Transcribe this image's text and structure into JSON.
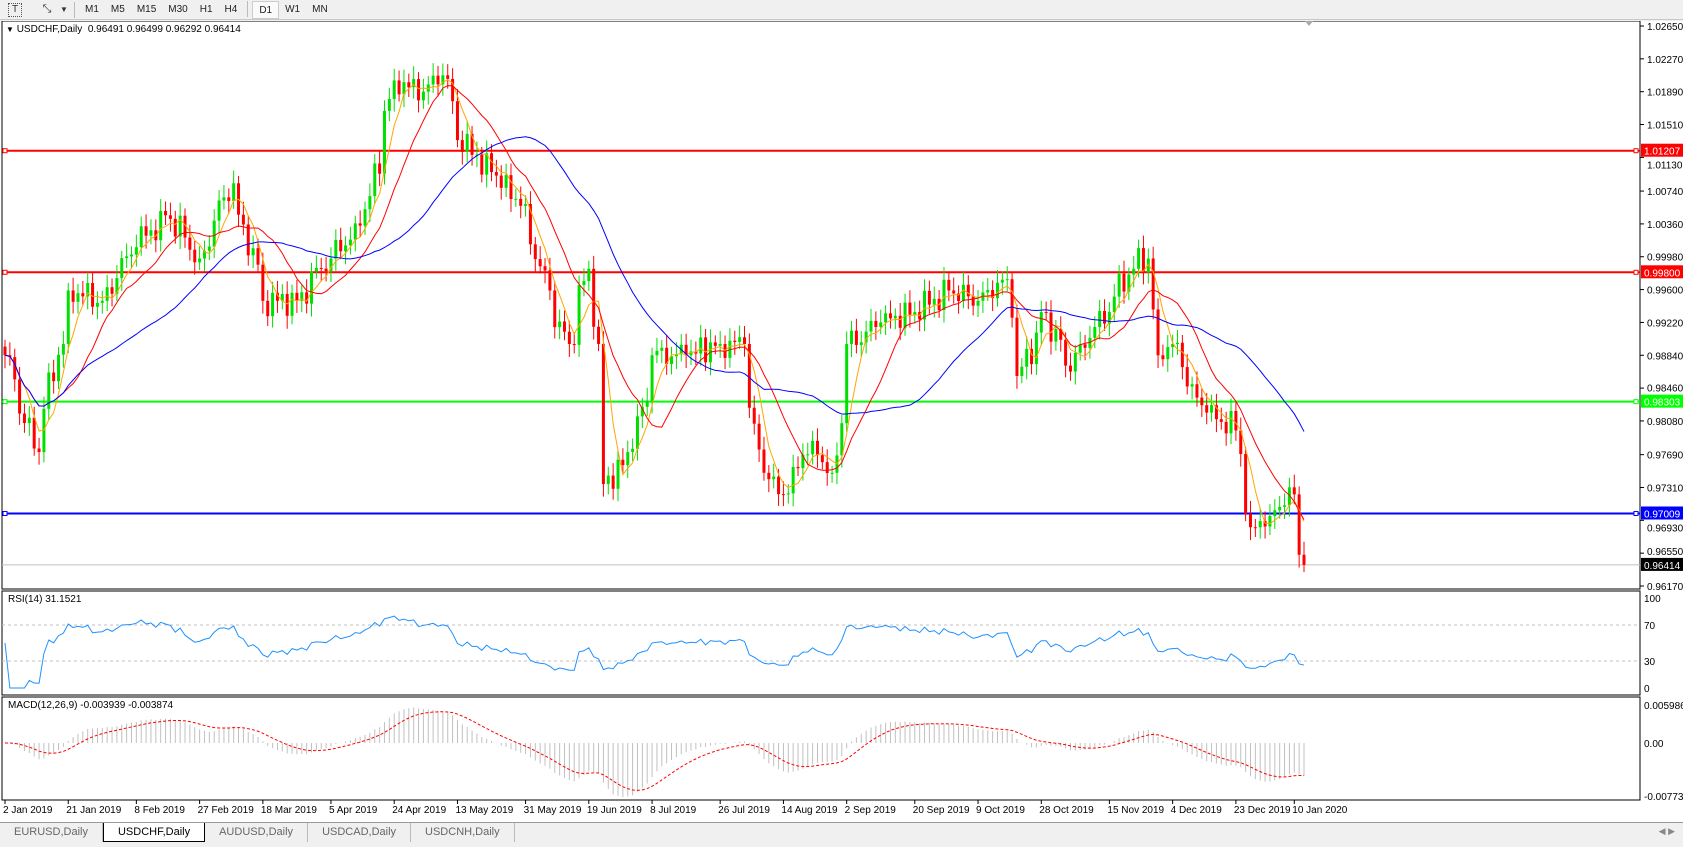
{
  "toolbar": {
    "timeframes": [
      "M1",
      "M5",
      "M15",
      "M30",
      "H1",
      "H4",
      "D1",
      "W1",
      "MN"
    ],
    "active": "D1",
    "icons": [
      "text-tool-icon",
      "line-tools-icon",
      "dropdown-arrow-icon"
    ]
  },
  "header": {
    "symbol": "USDCHF,Daily",
    "open": "0.96491",
    "high": "0.96499",
    "low": "0.96292",
    "close": "0.96414"
  },
  "tabs": [
    "EURUSD,Daily",
    "USDCHF,Daily",
    "AUDUSD,Daily",
    "USDCAD,Daily",
    "USDCNH,Daily"
  ],
  "active_tab": "USDCHF,Daily",
  "colors": {
    "bull": "#00e000",
    "bear": "#ff0000",
    "ma_fast": "#ffa500",
    "ma_mid": "#ff0000",
    "ma_slow": "#0000ff",
    "rsi": "#1e90ff",
    "macd_signal": "#ff0000",
    "macd_hist": "#c0c0c0"
  },
  "chart_data": [
    {
      "type": "candlestick",
      "title": "USDCHF,Daily",
      "ylim": [
        0.9617,
        1.0265
      ],
      "y_ticks": [
        "1.02650",
        "1.02270",
        "1.01890",
        "1.01510",
        "1.01130",
        "1.00740",
        "1.00360",
        "0.99980",
        "0.99600",
        "0.99220",
        "0.98840",
        "0.98460",
        "0.98080",
        "0.97690",
        "0.97310",
        "0.96930",
        "0.96550",
        "0.96170"
      ],
      "x_ticks": [
        "2 Jan 2019",
        "21 Jan 2019",
        "8 Feb 2019",
        "27 Feb 2019",
        "18 Mar 2019",
        "5 Apr 2019",
        "24 Apr 2019",
        "13 May 2019",
        "31 May 2019",
        "19 Jun 2019",
        "8 Jul 2019",
        "26 Jul 2019",
        "14 Aug 2019",
        "2 Sep 2019",
        "20 Sep 2019",
        "9 Oct 2019",
        "28 Oct 2019",
        "15 Nov 2019",
        "4 Dec 2019",
        "23 Dec 2019",
        "10 Jan 2020"
      ],
      "x_tick_dates": [
        "2019-01-02",
        "2019-01-21",
        "2019-02-08",
        "2019-02-27",
        "2019-03-18",
        "2019-04-05",
        "2019-04-24",
        "2019-05-13",
        "2019-05-31",
        "2019-06-19",
        "2019-07-08",
        "2019-07-26",
        "2019-08-14",
        "2019-09-02",
        "2019-09-20",
        "2019-10-09",
        "2019-10-28",
        "2019-11-15",
        "2019-12-04",
        "2019-12-23",
        "2020-01-10"
      ],
      "close_points": [
        [
          "2019-01-02",
          0.9884
        ],
        [
          "2019-01-11",
          0.9772
        ],
        [
          "2019-01-21",
          0.9959
        ],
        [
          "2019-01-30",
          0.9947
        ],
        [
          "2019-02-08",
          1.0009
        ],
        [
          "2019-02-18",
          1.0046
        ],
        [
          "2019-02-27",
          0.9996
        ],
        [
          "2019-03-08",
          1.0083
        ],
        [
          "2019-03-18",
          0.9947
        ],
        [
          "2019-03-27",
          0.9947
        ],
        [
          "2019-04-05",
          0.9996
        ],
        [
          "2019-04-15",
          1.0034
        ],
        [
          "2019-04-24",
          1.0202
        ],
        [
          "2019-05-02",
          1.0189
        ],
        [
          "2019-05-08",
          1.0208
        ],
        [
          "2019-05-13",
          1.0133
        ],
        [
          "2019-05-22",
          1.0096
        ],
        [
          "2019-05-31",
          1.0059
        ],
        [
          "2019-06-07",
          0.9959
        ],
        [
          "2019-06-13",
          0.9897
        ],
        [
          "2019-06-19",
          0.9984
        ],
        [
          "2019-06-24",
          0.9735
        ],
        [
          "2019-07-01",
          0.9772
        ],
        [
          "2019-07-08",
          0.9884
        ],
        [
          "2019-07-17",
          0.9884
        ],
        [
          "2019-07-26",
          0.9897
        ],
        [
          "2019-08-02",
          0.9897
        ],
        [
          "2019-08-08",
          0.9748
        ],
        [
          "2019-08-14",
          0.9723
        ],
        [
          "2019-08-22",
          0.9785
        ],
        [
          "2019-08-28",
          0.9748
        ],
        [
          "2019-09-02",
          0.9897
        ],
        [
          "2019-09-11",
          0.9922
        ],
        [
          "2019-09-20",
          0.9934
        ],
        [
          "2019-10-01",
          0.9959
        ],
        [
          "2019-10-09",
          0.9947
        ],
        [
          "2019-10-17",
          0.9972
        ],
        [
          "2019-10-21",
          0.986
        ],
        [
          "2019-10-28",
          0.9934
        ],
        [
          "2019-11-04",
          0.9872
        ],
        [
          "2019-11-15",
          0.9934
        ],
        [
          "2019-11-22",
          0.9984
        ],
        [
          "2019-11-27",
          0.9996
        ],
        [
          "2019-11-29",
          0.9884
        ],
        [
          "2019-12-04",
          0.9897
        ],
        [
          "2019-12-11",
          0.9835
        ],
        [
          "2019-12-17",
          0.981
        ],
        [
          "2019-12-23",
          0.9797
        ],
        [
          "2019-12-27",
          0.9685
        ],
        [
          "2020-01-03",
          0.9698
        ],
        [
          "2020-01-10",
          0.9723
        ],
        [
          "2020-01-14",
          0.96414
        ]
      ],
      "horizontal_lines": [
        {
          "price": 1.01207,
          "label": "1.01207",
          "color": "#ff0000"
        },
        {
          "price": 0.998,
          "label": "0.99800",
          "color": "#ff0000"
        },
        {
          "price": 0.98303,
          "label": "0.98303",
          "color": "#00ff00"
        },
        {
          "price": 0.97009,
          "label": "0.97009",
          "color": "#0000ff"
        }
      ],
      "current_price": {
        "price": 0.96414,
        "label": "0.96414"
      }
    },
    {
      "type": "line",
      "title": "RSI(14) 31.1521",
      "name": "RSI(14)",
      "last_value": "31.1521",
      "ylim": [
        0,
        100
      ],
      "y_ticks": [
        "100",
        "70",
        "30",
        "0"
      ],
      "levels": [
        70,
        30
      ]
    },
    {
      "type": "bar+line",
      "title": "MACD(12,26,9) -0.003939 -0.003874",
      "name": "MACD(12,26,9)",
      "macd_last": "-0.003939",
      "signal_last": "-0.003874",
      "ylim": [
        -0.007737,
        0.005986
      ],
      "y_ticks": [
        "0.005986",
        "0.00",
        "-0.007737"
      ]
    }
  ]
}
